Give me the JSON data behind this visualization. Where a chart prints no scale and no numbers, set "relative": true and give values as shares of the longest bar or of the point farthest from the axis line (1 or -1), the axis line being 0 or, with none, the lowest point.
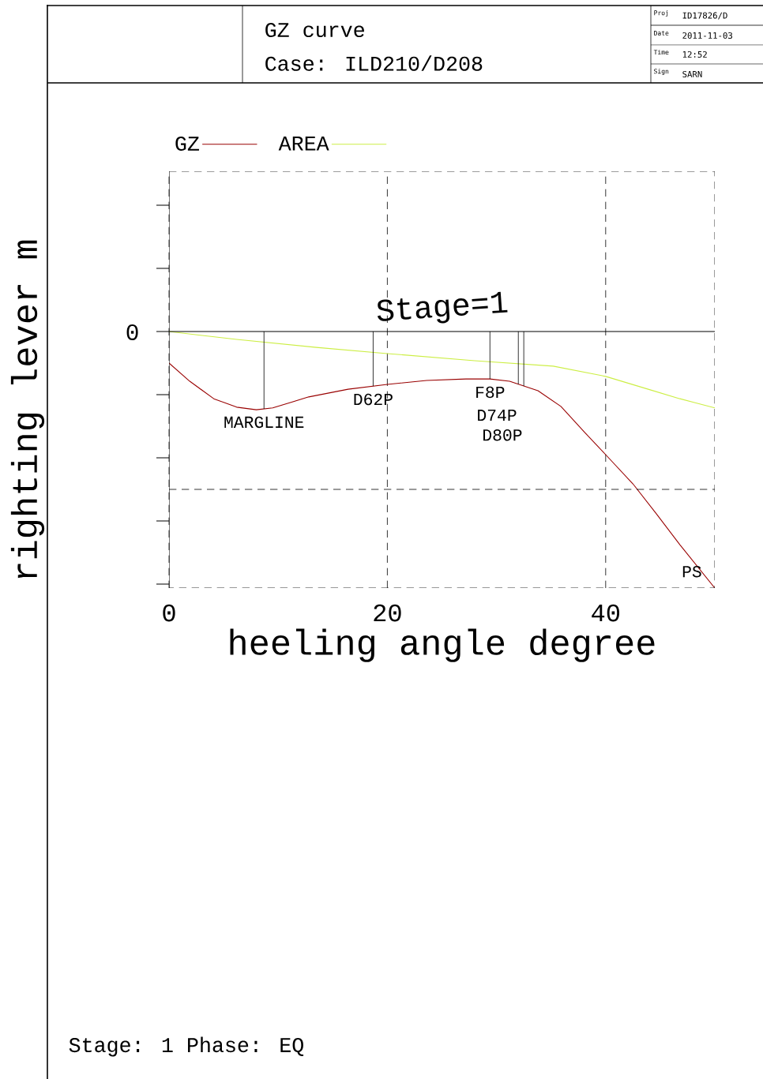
{
  "chart_data": {
    "type": "line",
    "title": "GZ curve",
    "subtitle": "Case: ILD210/D208",
    "xlabel": "heeling angle degree",
    "ylabel": "righting lever m",
    "relative": true,
    "xlim": [
      0,
      50
    ],
    "xticks": [
      0,
      20,
      40
    ],
    "grid": "x",
    "legend": "top left",
    "marker": "none",
    "line_style": "solid",
    "series": [
      {
        "name": "GZ",
        "color": "#990000",
        "x": [
          0,
          1.9,
          4.1,
          6.2,
          8,
          9.5,
          12.8,
          16.4,
          20,
          23.6,
          27.2,
          29.4,
          31.2,
          33.8,
          35.9,
          38.1,
          40,
          42.5,
          44.6,
          46.8,
          50
        ],
        "values": [
          -0.123,
          -0.194,
          -0.262,
          -0.295,
          -0.305,
          -0.298,
          -0.255,
          -0.225,
          -0.206,
          -0.191,
          -0.185,
          -0.185,
          -0.194,
          -0.231,
          -0.292,
          -0.394,
          -0.48,
          -0.594,
          -0.708,
          -0.831,
          -1
        ]
      },
      {
        "name": "AREA",
        "color": "#ccee44",
        "x": [
          0,
          6.2,
          13.5,
          20,
          28,
          35.2,
          40,
          43.9,
          46.8,
          50
        ],
        "values": [
          0,
          -0.031,
          -0.062,
          -0.086,
          -0.114,
          -0.135,
          -0.175,
          -0.225,
          -0.262,
          -0.298
        ]
      }
    ],
    "ref_lines": [
      {
        "axis": "x",
        "value": 8.7,
        "label": "MARGLINE"
      },
      {
        "axis": "x",
        "value": 18.7,
        "label": "D62P"
      },
      {
        "axis": "x",
        "value": 29.4,
        "label": "F8P"
      },
      {
        "axis": "x",
        "value": 32,
        "label": "D74P"
      },
      {
        "axis": "x",
        "value": 32.5,
        "label": "D80P"
      }
    ],
    "annotations": [
      "Proj",
      "ID17826/D",
      "Date",
      "2011-11-03",
      "Time",
      "12:52",
      "Sign",
      "SARN",
      "Stage=1",
      "Stage: 1  Phase: EQ",
      "0",
      {
        "text": "PS",
        "x": 50,
        "y": -1
      }
    ]
  }
}
